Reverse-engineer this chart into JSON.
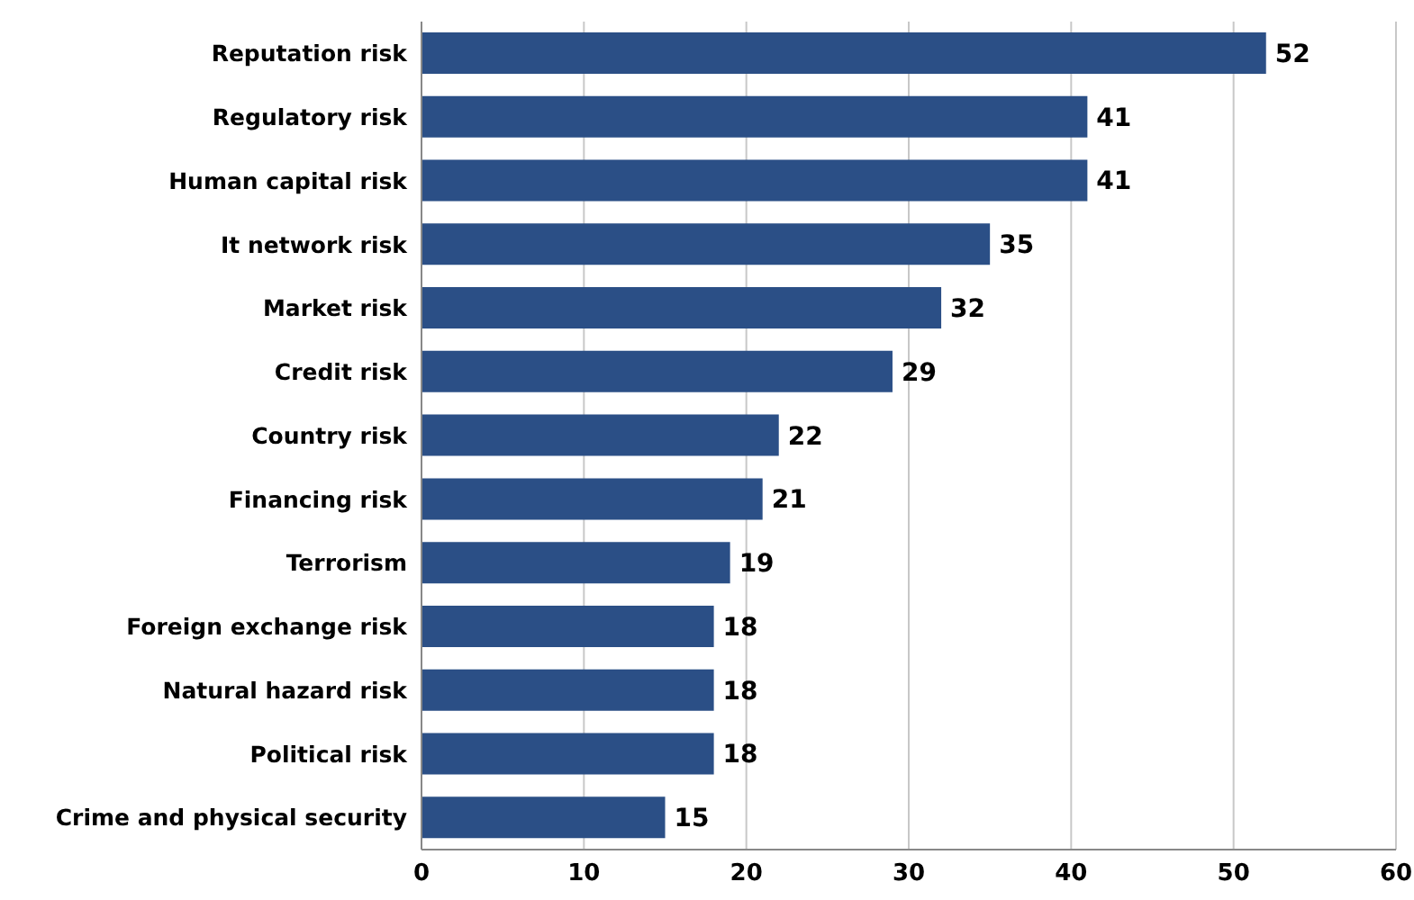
{
  "chart_data": {
    "type": "bar",
    "orientation": "horizontal",
    "categories": [
      "Reputation risk",
      "Regulatory risk",
      "Human capital risk",
      "It network risk",
      "Market risk",
      "Credit risk",
      "Country risk",
      "Financing risk",
      "Terrorism",
      "Foreign exchange risk",
      "Natural hazard risk",
      "Political risk",
      "Crime and physical security"
    ],
    "values": [
      52,
      41,
      41,
      35,
      32,
      29,
      22,
      21,
      19,
      18,
      18,
      18,
      15
    ],
    "color": "#2b4f86",
    "xlim": [
      0,
      60
    ],
    "xticks": [
      0,
      10,
      20,
      30,
      40,
      50,
      60
    ],
    "grid": "x",
    "data_labels": true
  }
}
